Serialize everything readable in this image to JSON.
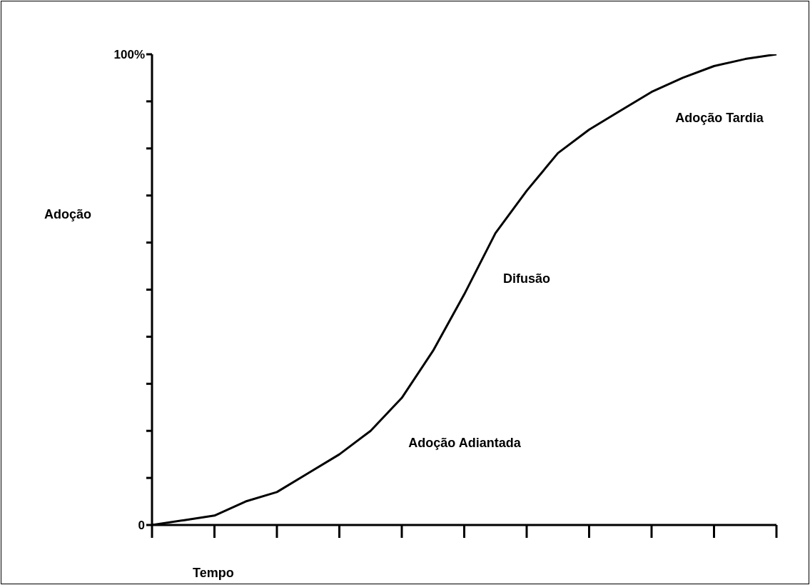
{
  "chart_data": {
    "type": "line",
    "xlabel": "Tempo",
    "ylabel": "Adoção",
    "categories": [
      null,
      null,
      null,
      null,
      null,
      null,
      null,
      null,
      null,
      null,
      null,
      null,
      null,
      null,
      null,
      null,
      null,
      null,
      null,
      null,
      null
    ],
    "series": [
      {
        "color": "#000000",
        "values": [
          0,
          1,
          2,
          5,
          7,
          11,
          15,
          20,
          27,
          37,
          49,
          62,
          71,
          79,
          84,
          88,
          92,
          95,
          97.5,
          99,
          100
        ]
      }
    ],
    "ylim": [
      0,
      100
    ],
    "yticks": [
      {
        "value": 0,
        "label": "0"
      },
      {
        "value": 10,
        "label": null
      },
      {
        "value": 20,
        "label": null
      },
      {
        "value": 30,
        "label": null
      },
      {
        "value": 40,
        "label": null
      },
      {
        "value": 50,
        "label": null
      },
      {
        "value": 60,
        "label": null
      },
      {
        "value": 70,
        "label": null
      },
      {
        "value": 80,
        "label": null
      },
      {
        "value": 90,
        "label": null
      },
      {
        "value": 100,
        "label": "100%"
      }
    ],
    "annotations": [
      "Difusão",
      "Adoção Adiantada",
      "Adoção Tardia"
    ]
  }
}
